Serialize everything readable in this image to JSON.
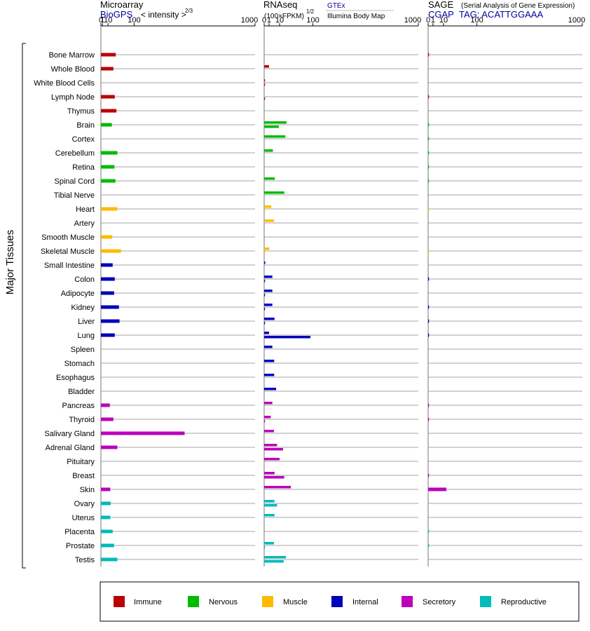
{
  "axis_label": "Major Tissues",
  "panels": [
    {
      "title": "Microarray",
      "subtitle": "BioGPS",
      "scale_label": "< intensity >",
      "scale_exp": "2/3"
    },
    {
      "title": "RNAseq",
      "subtitle": "(100×FPKM)",
      "scale_exp": "1/2",
      "source1": "GTEx",
      "source2": "Illumina Body Map"
    },
    {
      "title": "SAGE",
      "title_note": "(Serial Analysis of Gene Expression)",
      "subtitle": "CGAP",
      "tag_label": "TAG: ACATTGGAAA"
    }
  ],
  "ticks": [
    "0",
    "1",
    "10",
    "100",
    "1000"
  ],
  "legend": [
    {
      "label": "Immune",
      "color": "#bb0000"
    },
    {
      "label": "Nervous",
      "color": "#00bb00"
    },
    {
      "label": "Muscle",
      "color": "#ffbb00"
    },
    {
      "label": "Internal",
      "color": "#0000bb"
    },
    {
      "label": "Secretory",
      "color": "#bb00bb"
    },
    {
      "label": "Reproductive",
      "color": "#00bbbb"
    }
  ],
  "chart_data": {
    "type": "bar",
    "orientation": "horizontal",
    "x_scale": "power (Microarray: exponent 2/3; RNAseq: exponent 1/2)",
    "xlim": [
      0,
      1000
    ],
    "categories": [
      "Bone Marrow",
      "Whole Blood",
      "White Blood Cells",
      "Lymph Node",
      "Thymus",
      "Brain",
      "Cortex",
      "Cerebellum",
      "Retina",
      "Spinal Cord",
      "Tibial Nerve",
      "Heart",
      "Artery",
      "Smooth Muscle",
      "Skeletal Muscle",
      "Small Intestine",
      "Colon",
      "Adipocyte",
      "Kidney",
      "Liver",
      "Lung",
      "Spleen",
      "Stomach",
      "Esophagus",
      "Bladder",
      "Pancreas",
      "Thyroid",
      "Salivary Gland",
      "Adrenal Gland",
      "Pituitary",
      "Breast",
      "Skin",
      "Ovary",
      "Uterus",
      "Placenta",
      "Prostate",
      "Testis"
    ],
    "category_system": [
      0,
      0,
      0,
      0,
      0,
      1,
      1,
      1,
      1,
      1,
      1,
      2,
      2,
      2,
      2,
      3,
      3,
      3,
      3,
      3,
      3,
      3,
      3,
      3,
      3,
      4,
      4,
      4,
      4,
      4,
      4,
      4,
      5,
      5,
      5,
      5,
      5
    ],
    "series": [
      {
        "name": "BioGPS",
        "values": [
          30,
          23,
          null,
          27,
          32,
          19,
          null,
          35,
          26,
          29,
          null,
          35,
          null,
          20,
          47,
          21,
          27,
          25,
          40,
          42,
          27,
          null,
          null,
          null,
          null,
          14,
          23,
          400,
          35,
          null,
          null,
          15,
          16,
          15,
          21,
          25,
          35
        ]
      },
      {
        "name": "GTEx",
        "values": [
          null,
          1.0,
          0.02,
          null,
          null,
          21,
          19,
          3.2,
          null,
          4.8,
          17,
          2.2,
          4.1,
          null,
          1.1,
          0.05,
          2.8,
          2.8,
          2.8,
          4.5,
          1.0,
          2.8,
          4.2,
          4.2,
          6.0,
          2.8,
          1.8,
          4.0,
          7.0,
          10,
          4.5,
          30,
          4.5,
          4.5,
          null,
          4.0,
          20
        ]
      },
      {
        "name": "Illumina Body Map",
        "values": [
          null,
          null,
          0.02,
          0.02,
          null,
          9,
          null,
          null,
          null,
          null,
          null,
          0.02,
          null,
          null,
          0.02,
          null,
          0.02,
          0.02,
          0.02,
          0.02,
          90,
          null,
          null,
          null,
          null,
          null,
          0.02,
          null,
          15,
          null,
          17,
          null,
          7,
          null,
          null,
          0.02,
          16
        ]
      },
      {
        "name": "CGAP",
        "values": [
          0.02,
          null,
          null,
          0.02,
          null,
          0.02,
          0.02,
          0.02,
          0.02,
          0.02,
          null,
          0.01,
          null,
          null,
          0.01,
          null,
          0.02,
          null,
          0.02,
          0.02,
          0.02,
          null,
          null,
          null,
          null,
          0.02,
          0.02,
          null,
          null,
          null,
          0.02,
          14,
          null,
          null,
          0.02,
          0.02,
          null
        ]
      }
    ]
  }
}
